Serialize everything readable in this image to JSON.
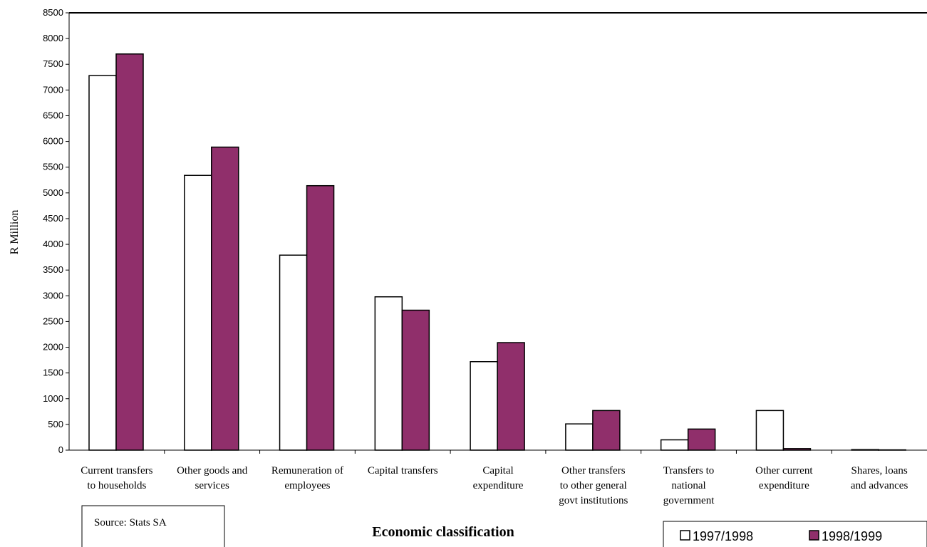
{
  "chart_data": {
    "type": "bar",
    "title": "",
    "ylabel": "R Million",
    "xlabel": "Economic classification",
    "ylim": [
      0,
      8500
    ],
    "ytick_step": 500,
    "grid": false,
    "legend_position": "bottom-right",
    "categories": [
      [
        "Current transfers",
        "to households"
      ],
      [
        "Other goods and",
        "services"
      ],
      [
        "Remuneration of",
        "employees"
      ],
      [
        "Capital transfers"
      ],
      [
        "Capital",
        "expenditure"
      ],
      [
        "Other transfers",
        "to other general",
        "govt institutions"
      ],
      [
        "Transfers to",
        "national",
        "government"
      ],
      [
        "Other current",
        "expenditure"
      ],
      [
        "Shares, loans",
        "and advances"
      ]
    ],
    "series": [
      {
        "name": "1997/1998",
        "color": "#ffffff",
        "values": [
          7280,
          5340,
          3790,
          2980,
          1720,
          510,
          200,
          770,
          10
        ]
      },
      {
        "name": "1998/1999",
        "color": "#902f6b",
        "values": [
          7700,
          5890,
          5140,
          2720,
          2090,
          770,
          410,
          30,
          5
        ]
      }
    ],
    "annotations": [
      {
        "text": "Source:  Stats SA"
      }
    ]
  }
}
